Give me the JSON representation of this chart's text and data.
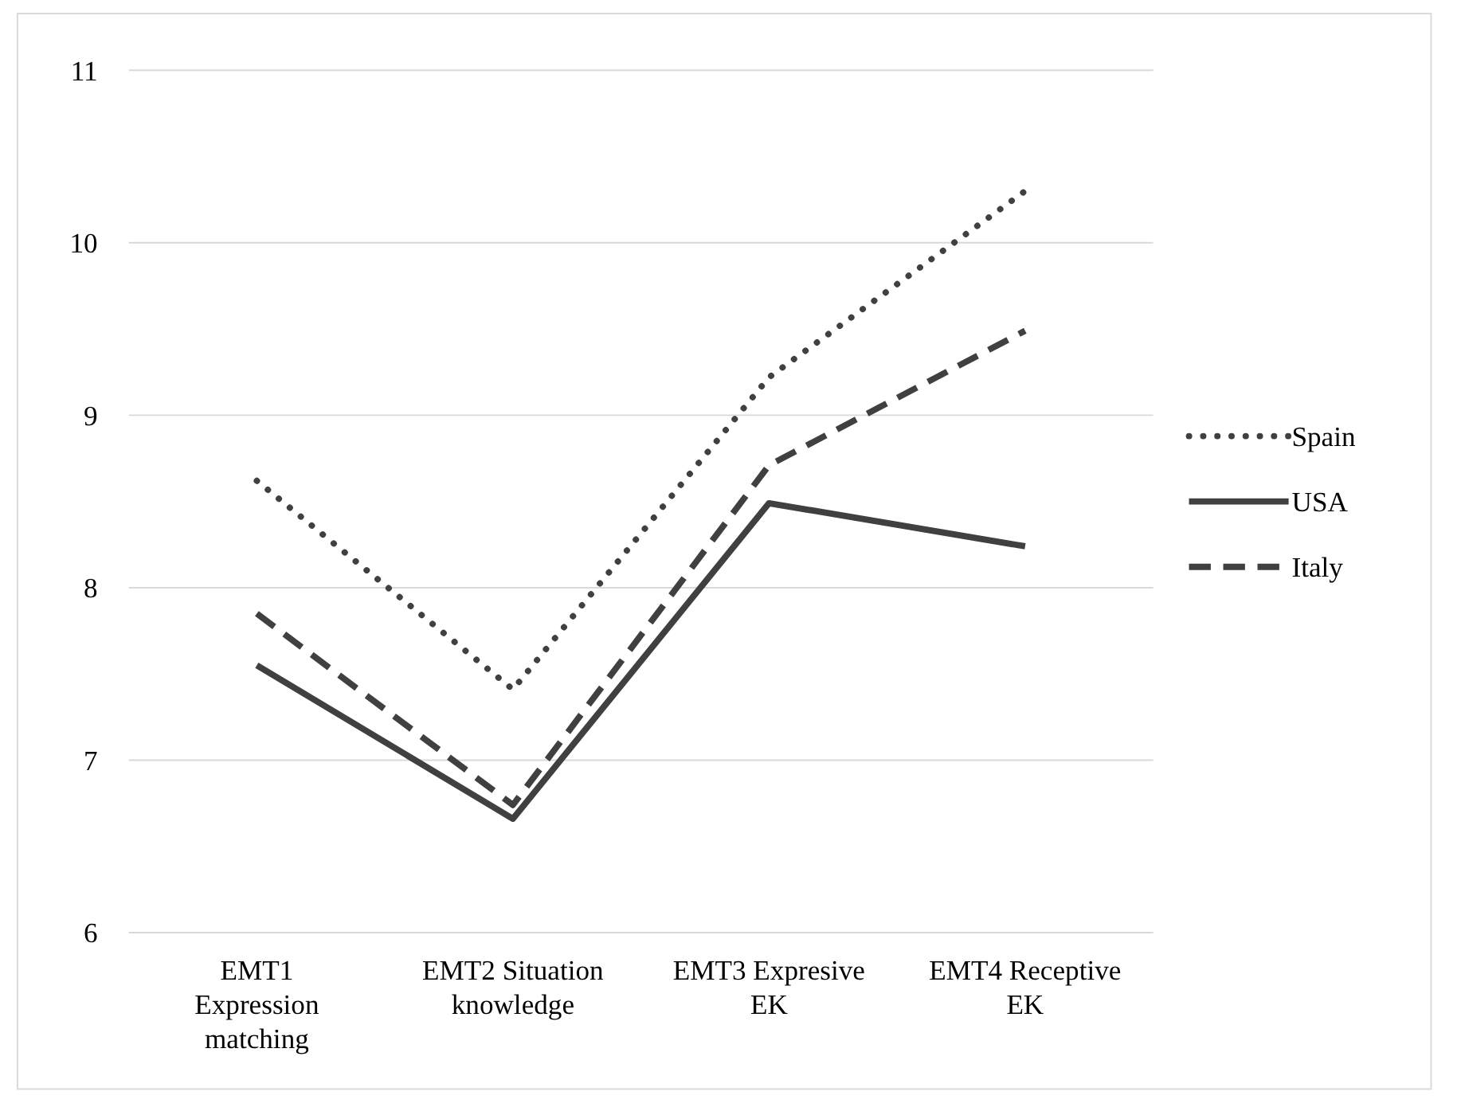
{
  "chart_data": {
    "type": "line",
    "categories": [
      "EMT1 Expression matching",
      "EMT2 Situation knowledge",
      "EMT3 Expresive EK",
      "EMT4 Receptive EK"
    ],
    "series": [
      {
        "name": "Spain",
        "color": "#404040",
        "line_style": "dotted",
        "values": [
          8.62,
          7.41,
          9.22,
          10.3
        ]
      },
      {
        "name": "USA",
        "color": "#404040",
        "line_style": "solid",
        "values": [
          7.55,
          6.66,
          8.49,
          8.24
        ]
      },
      {
        "name": "Italy",
        "color": "#404040",
        "line_style": "dashed",
        "values": [
          7.85,
          6.74,
          8.71,
          9.49
        ]
      }
    ],
    "ylim": [
      6,
      11
    ],
    "yticks": [
      6,
      7,
      8,
      9,
      10,
      11
    ],
    "grid": "y",
    "legend": "right",
    "marker": "none"
  }
}
